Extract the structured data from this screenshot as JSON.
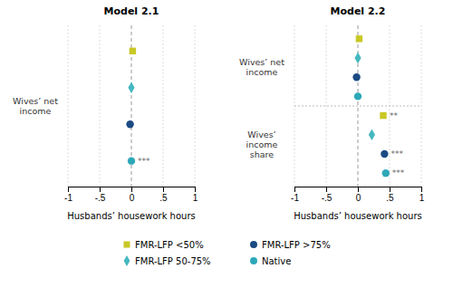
{
  "chart_data": [
    {
      "type": "scatter",
      "title": "Model 2.1",
      "xlabel": "Husbands’ housework hours",
      "xlim": [
        -1,
        1
      ],
      "xticks": [
        -1,
        {
          "value": -0.5,
          "label": "-.5"
        },
        0,
        {
          "value": 0.5,
          "label": ".5"
        },
        1
      ],
      "grid": true,
      "legend": "bottom",
      "categories": [
        "Wives’ net\nincome"
      ],
      "series": [
        {
          "name": "FMR-LFP <50%",
          "color": "#c8c826",
          "marker": "square",
          "values": [
            0.02
          ],
          "significance": [
            null
          ]
        },
        {
          "name": "FMR-LFP 50-75%",
          "color": "#45b8c0",
          "marker": "diamond",
          "values": [
            0.0
          ],
          "significance": [
            null
          ]
        },
        {
          "name": "FMR-LFP >75%",
          "color": "#1a4a82",
          "marker": "circle",
          "values": [
            -0.02
          ],
          "significance": [
            null
          ]
        },
        {
          "name": "Native",
          "color": "#2da8b8",
          "marker": "circle",
          "values": [
            0.0
          ],
          "significance": [
            "***"
          ]
        }
      ]
    },
    {
      "type": "scatter",
      "title": "Model 2.2",
      "xlabel": "Husbands’ housework hours",
      "xlim": [
        -1,
        1
      ],
      "xticks": [
        -1,
        {
          "value": -0.5,
          "label": "-.5"
        },
        0,
        {
          "value": 0.5,
          "label": ".5"
        },
        1
      ],
      "grid": true,
      "categories": [
        "Wives’ net\nincome",
        "Wives’\nincome\nshare"
      ],
      "series": [
        {
          "name": "FMR-LFP <50%",
          "color": "#c8c826",
          "marker": "square",
          "values": [
            0.02,
            0.4
          ],
          "significance": [
            null,
            "**"
          ]
        },
        {
          "name": "FMR-LFP 50-75%",
          "color": "#45b8c0",
          "marker": "diamond",
          "values": [
            0.0,
            0.22
          ],
          "significance": [
            null,
            null
          ]
        },
        {
          "name": "FMR-LFP >75%",
          "color": "#1a4a82",
          "marker": "circle",
          "values": [
            -0.02,
            0.42
          ],
          "significance": [
            null,
            "***"
          ]
        },
        {
          "name": "Native",
          "color": "#2da8b8",
          "marker": "circle",
          "values": [
            0.0,
            0.44
          ],
          "significance": [
            null,
            "***"
          ]
        }
      ]
    }
  ]
}
